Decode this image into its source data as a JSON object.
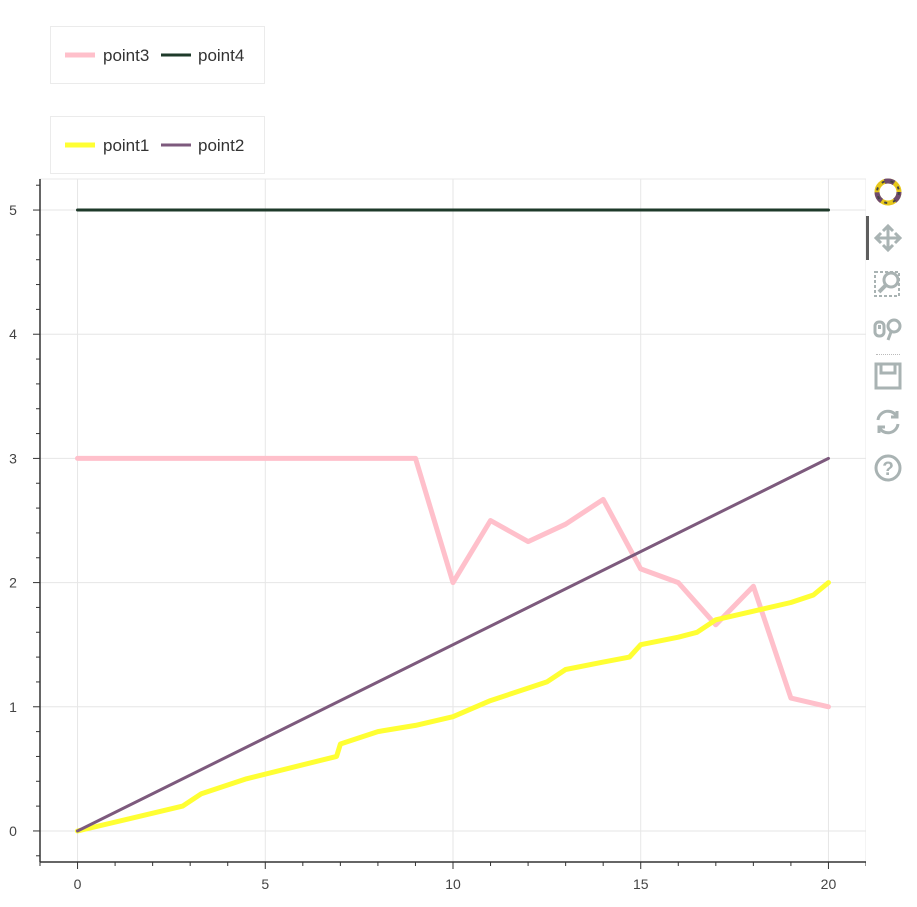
{
  "chart_data": {
    "type": "line",
    "xlim": [
      -1,
      21
    ],
    "ylim": [
      -0.25,
      5.25
    ],
    "x_ticks": [
      0,
      5,
      10,
      15,
      20
    ],
    "y_ticks": [
      0,
      1,
      2,
      3,
      4,
      5
    ],
    "x_tick_labels": [
      "0",
      "5",
      "10",
      "15",
      "20"
    ],
    "y_tick_labels": [
      "0",
      "1",
      "2",
      "3",
      "4",
      "5"
    ],
    "grid": true,
    "series": [
      {
        "name": "point1",
        "color": "#ffff33",
        "x": [
          0,
          2.8,
          3.3,
          4.5,
          6.9,
          7.0,
          8.0,
          9.0,
          10.0,
          11.0,
          12.0,
          12.5,
          13.0,
          14.0,
          14.7,
          15.0,
          16.0,
          16.5,
          17.0,
          18.0,
          19.0,
          19.6,
          20.0
        ],
        "values": [
          0,
          0.2,
          0.3,
          0.42,
          0.6,
          0.7,
          0.8,
          0.85,
          0.92,
          1.05,
          1.15,
          1.2,
          1.3,
          1.36,
          1.4,
          1.5,
          1.56,
          1.6,
          1.7,
          1.77,
          1.84,
          1.9,
          2.0
        ]
      },
      {
        "name": "point2",
        "color": "#7d5a7d",
        "x": [
          0,
          20
        ],
        "values": [
          0,
          3
        ]
      },
      {
        "name": "point3",
        "color": "#ffc0cb",
        "x": [
          0,
          9,
          10,
          11,
          12,
          13,
          14,
          15,
          16,
          17,
          18,
          19,
          20
        ],
        "values": [
          3,
          3,
          2,
          2.5,
          2.33,
          2.47,
          2.67,
          2.11,
          2.0,
          1.66,
          1.97,
          1.07,
          1.0
        ]
      },
      {
        "name": "point4",
        "color": "#1e3a2a",
        "x": [
          0,
          20
        ],
        "values": [
          5,
          5
        ]
      }
    ],
    "legends": [
      {
        "placement": "top-left-upper",
        "entries": [
          "point3",
          "point4"
        ]
      },
      {
        "placement": "top-left",
        "entries": [
          "point1",
          "point2"
        ]
      }
    ]
  },
  "legend_labels": {
    "point3": "point3",
    "point4": "point4",
    "point1": "point1",
    "point2": "point2"
  },
  "toolbar": {
    "icons": [
      "bokeh-logo-icon",
      "pan-icon",
      "box-zoom-icon",
      "wheel-zoom-icon",
      "save-icon",
      "reset-icon",
      "help-icon"
    ]
  }
}
